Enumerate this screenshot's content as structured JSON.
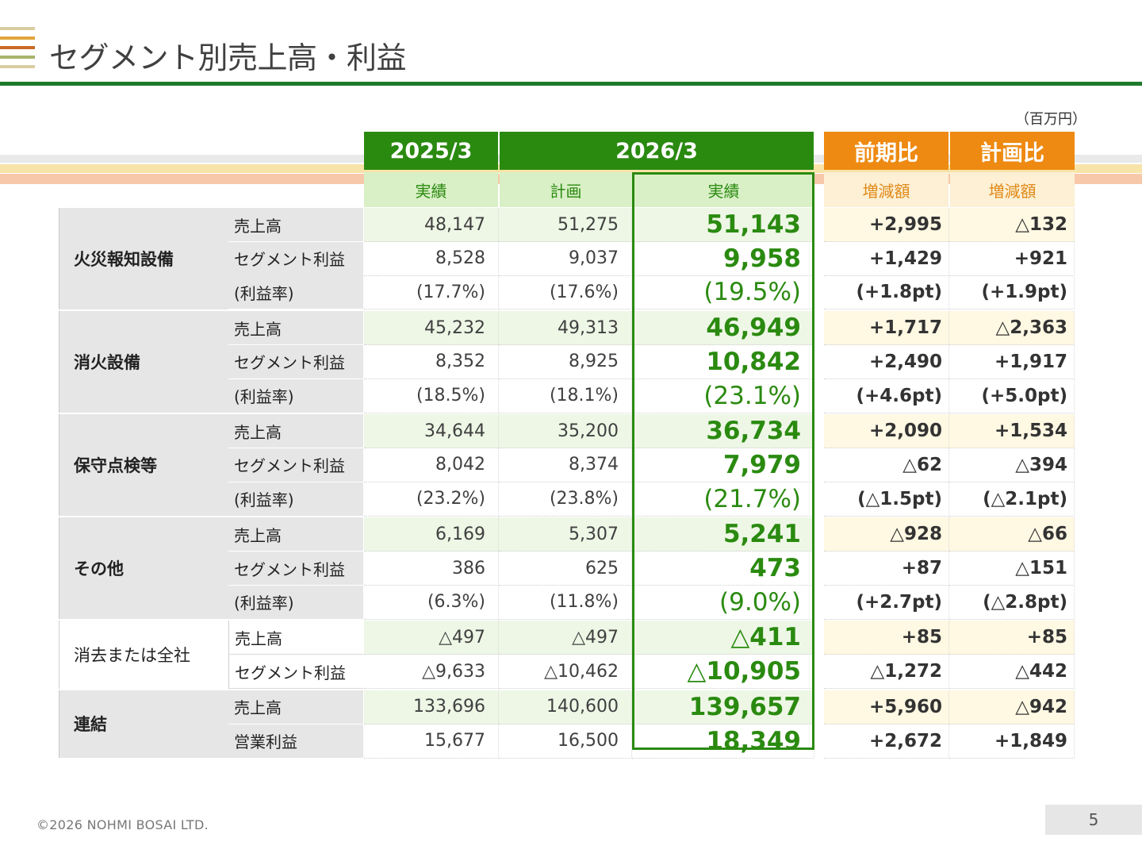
{
  "title": "セグメント別売上高・利益",
  "unit": "（百万円）",
  "colors": {
    "logo": [
      "#d9cda0",
      "#e2a53b",
      "#c96a27",
      "#a8b46a",
      "#d9cda0"
    ],
    "green_dark": "#1f7a2b",
    "green_header": "#2a8a10",
    "green_sub": "#d9f0c6",
    "orange_header": "#ee8a11",
    "orange_sub": "#fdf0d4"
  },
  "headers": {
    "fy2025": "2025/3",
    "fy2026": "2026/3",
    "vs_prev": "前期比",
    "vs_plan": "計画比",
    "sub_actual_2025": "実績",
    "sub_plan_2026": "計画",
    "sub_actual_2026": "実績",
    "sub_change_prev": "増減額",
    "sub_change_plan": "増減額"
  },
  "segments": [
    {
      "name": "火災報知設備",
      "rows": [
        {
          "label": "売上高",
          "a2025": "48,147",
          "plan": "51,275",
          "a2026": "51,143",
          "vs_prev": "+2,995",
          "vs_plan": "△132"
        },
        {
          "label": "セグメント利益",
          "a2025": "8,528",
          "plan": "9,037",
          "a2026": "9,958",
          "vs_prev": "+1,429",
          "vs_plan": "+921"
        },
        {
          "label": "(利益率)",
          "a2025": "(17.7%)",
          "plan": "(17.6%)",
          "a2026": "(19.5%)",
          "vs_prev": "(+1.8pt)",
          "vs_plan": "(+1.9pt)"
        }
      ]
    },
    {
      "name": "消火設備",
      "rows": [
        {
          "label": "売上高",
          "a2025": "45,232",
          "plan": "49,313",
          "a2026": "46,949",
          "vs_prev": "+1,717",
          "vs_plan": "△2,363"
        },
        {
          "label": "セグメント利益",
          "a2025": "8,352",
          "plan": "8,925",
          "a2026": "10,842",
          "vs_prev": "+2,490",
          "vs_plan": "+1,917"
        },
        {
          "label": "(利益率)",
          "a2025": "(18.5%)",
          "plan": "(18.1%)",
          "a2026": "(23.1%)",
          "vs_prev": "(+4.6pt)",
          "vs_plan": "(+5.0pt)"
        }
      ]
    },
    {
      "name": "保守点検等",
      "rows": [
        {
          "label": "売上高",
          "a2025": "34,644",
          "plan": "35,200",
          "a2026": "36,734",
          "vs_prev": "+2,090",
          "vs_plan": "+1,534"
        },
        {
          "label": "セグメント利益",
          "a2025": "8,042",
          "plan": "8,374",
          "a2026": "7,979",
          "vs_prev": "△62",
          "vs_plan": "△394"
        },
        {
          "label": "(利益率)",
          "a2025": "(23.2%)",
          "plan": "(23.8%)",
          "a2026": "(21.7%)",
          "vs_prev": "(△1.5pt)",
          "vs_plan": "(△2.1pt)"
        }
      ]
    },
    {
      "name": "その他",
      "rows": [
        {
          "label": "売上高",
          "a2025": "6,169",
          "plan": "5,307",
          "a2026": "5,241",
          "vs_prev": "△928",
          "vs_plan": "△66"
        },
        {
          "label": "セグメント利益",
          "a2025": "386",
          "plan": "625",
          "a2026": "473",
          "vs_prev": "+87",
          "vs_plan": "△151"
        },
        {
          "label": "(利益率)",
          "a2025": "(6.3%)",
          "plan": "(11.8%)",
          "a2026": "(9.0%)",
          "vs_prev": "(+2.7pt)",
          "vs_plan": "(△2.8pt)"
        }
      ]
    },
    {
      "name": "消去または全社",
      "rows": [
        {
          "label": "売上高",
          "a2025": "△497",
          "plan": "△497",
          "a2026": "△411",
          "vs_prev": "+85",
          "vs_plan": "+85"
        },
        {
          "label": "セグメント利益",
          "a2025": "△9,633",
          "plan": "△10,462",
          "a2026": "△10,905",
          "vs_prev": "△1,272",
          "vs_plan": "△442"
        }
      ]
    },
    {
      "name": "連結",
      "rows": [
        {
          "label": "売上高",
          "a2025": "133,696",
          "plan": "140,600",
          "a2026": "139,657",
          "vs_prev": "+5,960",
          "vs_plan": "△942"
        },
        {
          "label": "営業利益",
          "a2025": "15,677",
          "plan": "16,500",
          "a2026": "18,349",
          "vs_prev": "+2,672",
          "vs_plan": "+1,849"
        }
      ]
    }
  ],
  "footer": "©2026 NOHMI BOSAI LTD.",
  "page_number": "5"
}
